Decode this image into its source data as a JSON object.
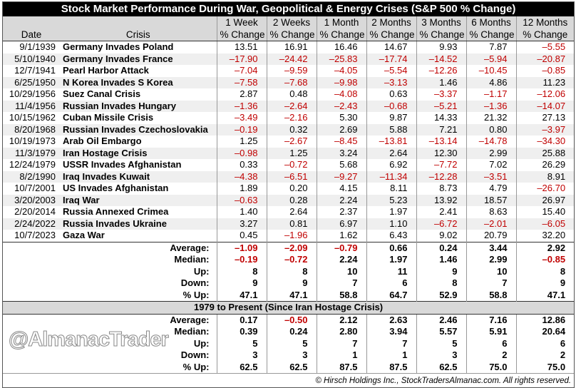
{
  "title": "Stock Market Performance During War, Geopolitical & Energy Crises (S&P 500 % Change)",
  "headers": {
    "date": "Date",
    "crisis": "Crisis",
    "periods": [
      "1 Week",
      "2 Weeks",
      "1 Month",
      "2 Months",
      "3 Months",
      "6 Months",
      "12 Months"
    ],
    "sub": "% Change"
  },
  "rows": [
    {
      "date": "9/1/1939",
      "crisis": "Germany Invades Poland",
      "values": [
        "13.51",
        "16.91",
        "16.46",
        "14.67",
        "9.93",
        "7.87",
        "–5.55"
      ]
    },
    {
      "date": "5/10/1940",
      "crisis": "Germany Invades France",
      "values": [
        "–17.90",
        "–24.42",
        "–25.83",
        "–17.74",
        "–14.52",
        "–5.94",
        "–20.87"
      ]
    },
    {
      "date": "12/7/1941",
      "crisis": "Pearl Harbor Attack",
      "values": [
        "–7.04",
        "–9.59",
        "–4.05",
        "–5.54",
        "–12.26",
        "–10.45",
        "–0.85"
      ]
    },
    {
      "date": "6/25/1950",
      "crisis": "N Korea Invades S Korea",
      "values": [
        "–7.58",
        "–7.68",
        "–9.98",
        "–3.13",
        "1.46",
        "4.86",
        "11.23"
      ]
    },
    {
      "date": "10/29/1956",
      "crisis": "Suez Canal Crisis",
      "values": [
        "2.87",
        "0.48",
        "–4.08",
        "0.63",
        "–3.37",
        "–1.17",
        "–12.06"
      ]
    },
    {
      "date": "11/4/1956",
      "crisis": "Russian Invades Hungary",
      "values": [
        "–1.36",
        "–2.64",
        "–2.43",
        "–0.68",
        "–5.21",
        "–1.36",
        "–14.07"
      ]
    },
    {
      "date": "10/15/1962",
      "crisis": "Cuban Missile Crisis",
      "values": [
        "–3.49",
        "–2.16",
        "5.30",
        "9.87",
        "14.33",
        "21.32",
        "27.13"
      ]
    },
    {
      "date": "8/20/1968",
      "crisis": "Russian Invades Czechoslovakia",
      "values": [
        "–0.19",
        "0.32",
        "2.69",
        "5.88",
        "7.21",
        "0.80",
        "–3.97"
      ]
    },
    {
      "date": "10/19/1973",
      "crisis": "Arab Oil Embargo",
      "values": [
        "1.25",
        "–2.67",
        "–8.45",
        "–13.81",
        "–13.14",
        "–14.78",
        "–34.30"
      ]
    },
    {
      "date": "11/3/1979",
      "crisis": "Iran Hostage Crisis",
      "values": [
        "–0.98",
        "1.25",
        "3.24",
        "2.64",
        "12.30",
        "2.99",
        "25.88"
      ]
    },
    {
      "date": "12/24/1979",
      "crisis": "USSR Invades Afghanistan",
      "values": [
        "0.33",
        "–0.72",
        "5.68",
        "6.92",
        "–7.72",
        "7.02",
        "26.29"
      ]
    },
    {
      "date": "8/2/1990",
      "crisis": "Iraq Invades Kuwait",
      "values": [
        "–4.38",
        "–6.51",
        "–9.27",
        "–11.34",
        "–12.28",
        "–3.51",
        "8.91"
      ]
    },
    {
      "date": "10/7/2001",
      "crisis": "US Invades Afghanistan",
      "values": [
        "1.89",
        "0.20",
        "4.15",
        "8.11",
        "8.73",
        "4.79",
        "–26.70"
      ]
    },
    {
      "date": "3/20/2003",
      "crisis": "Iraq War",
      "values": [
        "–0.63",
        "0.28",
        "2.24",
        "5.23",
        "13.92",
        "18.57",
        "26.97"
      ]
    },
    {
      "date": "2/20/2014",
      "crisis": "Russia Annexed Crimea",
      "values": [
        "1.40",
        "2.64",
        "2.37",
        "1.97",
        "2.41",
        "8.63",
        "15.40"
      ]
    },
    {
      "date": "2/24/2022",
      "crisis": "Russia Invades Ukraine",
      "values": [
        "3.27",
        "0.81",
        "6.97",
        "1.10",
        "–6.72",
        "–2.01",
        "–6.05"
      ]
    },
    {
      "date": "10/7/2023",
      "crisis": "Gaza War",
      "values": [
        "0.45",
        "–1.96",
        "1.62",
        "6.43",
        "9.02",
        "20.79",
        "32.20"
      ]
    }
  ],
  "stats": [
    {
      "label": "Average:",
      "values": [
        "–1.09",
        "–2.09",
        "–0.79",
        "0.66",
        "0.24",
        "3.44",
        "2.92"
      ]
    },
    {
      "label": "Median:",
      "values": [
        "–0.19",
        "–0.72",
        "2.24",
        "1.97",
        "1.46",
        "2.99",
        "–0.85"
      ]
    },
    {
      "label": "Up:",
      "values": [
        "8",
        "8",
        "10",
        "11",
        "9",
        "10",
        "8"
      ]
    },
    {
      "label": "Down:",
      "values": [
        "9",
        "9",
        "7",
        "6",
        "8",
        "7",
        "9"
      ]
    },
    {
      "label": "% Up:",
      "values": [
        "47.1",
        "47.1",
        "58.8",
        "64.7",
        "52.9",
        "58.8",
        "47.1"
      ]
    }
  ],
  "section2_title": "1979 to Present (Since Iran Hostage Crisis)",
  "stats2": [
    {
      "label": "Average:",
      "values": [
        "0.17",
        "–0.50",
        "2.12",
        "2.63",
        "2.46",
        "7.16",
        "12.86"
      ]
    },
    {
      "label": "Median:",
      "values": [
        "0.39",
        "0.24",
        "2.80",
        "3.94",
        "5.57",
        "5.91",
        "20.64"
      ]
    },
    {
      "label": "Up:",
      "values": [
        "5",
        "5",
        "7",
        "7",
        "5",
        "6",
        "6"
      ]
    },
    {
      "label": "Down:",
      "values": [
        "3",
        "3",
        "1",
        "1",
        "3",
        "2",
        "2"
      ]
    },
    {
      "label": "% Up:",
      "values": [
        "62.5",
        "62.5",
        "87.5",
        "87.5",
        "62.5",
        "75.0",
        "75.0"
      ]
    }
  ],
  "watermark": "@AlmanacTrader",
  "footer": "© Hirsch Holdings Inc., StockTradersAlmanac.com. All rights reserved.",
  "colors": {
    "negative": "#c00000",
    "header_bg": "#d9d9d9",
    "title_bg": "#000000"
  }
}
